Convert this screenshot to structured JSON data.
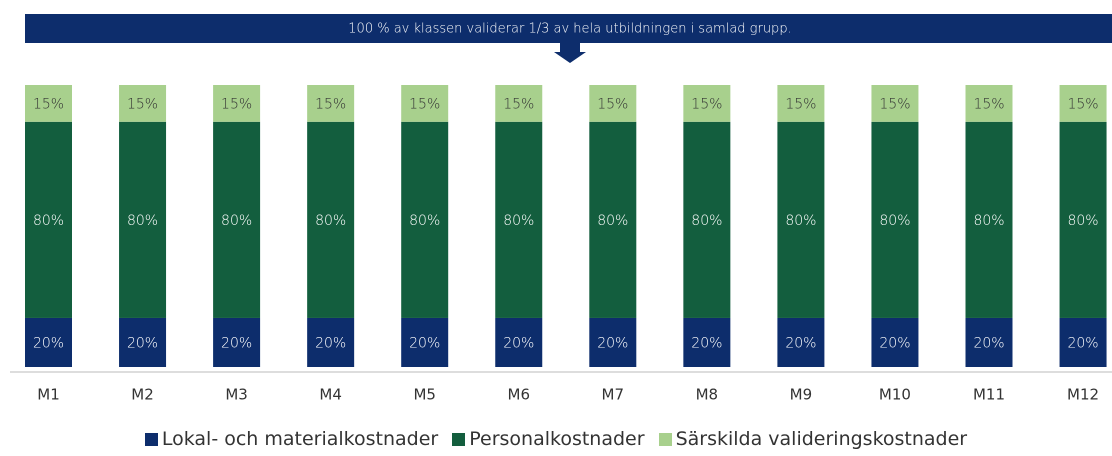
{
  "chart_data": {
    "type": "stacked_bar",
    "annotation": "100 % av klassen validerar 1/3 av hela utbildningen i samlad grupp.",
    "categories": [
      "M1",
      "M2",
      "M3",
      "M4",
      "M5",
      "M6",
      "M7",
      "M8",
      "M9",
      "M10",
      "M11",
      "M12"
    ],
    "series": [
      {
        "name": "Lokal- och materialkostnader",
        "color": "#0d2d6c",
        "values": [
          20,
          20,
          20,
          20,
          20,
          20,
          20,
          20,
          20,
          20,
          20,
          20
        ],
        "value_labels": [
          "20%",
          "20%",
          "20%",
          "20%",
          "20%",
          "20%",
          "20%",
          "20%",
          "20%",
          "20%",
          "20%",
          "20%"
        ]
      },
      {
        "name": "Personalkostnader",
        "color": "#135e3e",
        "values": [
          80,
          80,
          80,
          80,
          80,
          80,
          80,
          80,
          80,
          80,
          80,
          80
        ],
        "value_labels": [
          "80%",
          "80%",
          "80%",
          "80%",
          "80%",
          "80%",
          "80%",
          "80%",
          "80%",
          "80%",
          "80%",
          "80%"
        ]
      },
      {
        "name": "Särskilda valideringskostnader",
        "color": "#a8d08d",
        "values": [
          15,
          15,
          15,
          15,
          15,
          15,
          15,
          15,
          15,
          15,
          15,
          15
        ],
        "value_labels": [
          "15%",
          "15%",
          "15%",
          "15%",
          "15%",
          "15%",
          "15%",
          "15%",
          "15%",
          "15%",
          "15%",
          "15%"
        ]
      }
    ],
    "legend": "bottom"
  }
}
